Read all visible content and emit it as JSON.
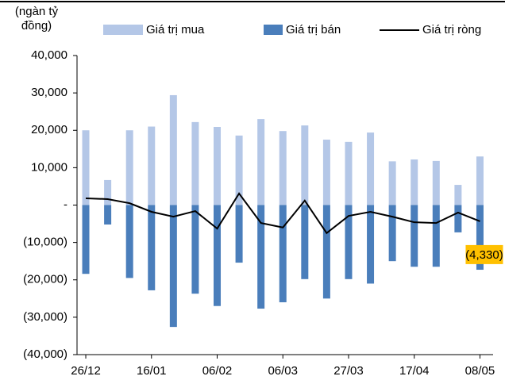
{
  "chart_data": {
    "type": "bar",
    "y_label": "(ngàn tỷ đồng)",
    "categories": [
      "26/12",
      null,
      null,
      "16/01",
      null,
      null,
      "06/02",
      null,
      null,
      "06/03",
      null,
      null,
      "27/03",
      null,
      null,
      "17/04",
      null,
      null,
      "08/05"
    ],
    "series": [
      {
        "name": "Giá trị mua",
        "type": "bar",
        "color": "#b4c7e7",
        "values": [
          20000,
          6700,
          20000,
          21000,
          29400,
          22200,
          20900,
          18600,
          23000,
          19800,
          21300,
          17500,
          16900,
          19400,
          11700,
          12200,
          11800,
          5400,
          13000
        ]
      },
      {
        "name": "Giá trị bán",
        "type": "bar",
        "color": "#4a7ebb",
        "values": [
          -18400,
          -5200,
          -19500,
          -22800,
          -32600,
          -23700,
          -27000,
          -15400,
          -27700,
          -26000,
          -19800,
          -25000,
          -19800,
          -21000,
          -15000,
          -16500,
          -16500,
          -7300,
          -17300
        ]
      },
      {
        "name": "Giá trị ròng",
        "type": "line",
        "color": "#000000",
        "values": [
          1800,
          1600,
          500,
          -1800,
          -3100,
          -1600,
          -6300,
          3100,
          -4800,
          -6000,
          1200,
          -7500,
          -2900,
          -1800,
          -3100,
          -4600,
          -4800,
          -2000,
          -4330
        ],
        "value_labels": [
          null,
          null,
          null,
          null,
          null,
          null,
          null,
          null,
          null,
          null,
          null,
          null,
          null,
          null,
          null,
          null,
          null,
          null,
          "(4,330)"
        ],
        "label_color": "#ffc000"
      }
    ],
    "ylim": [
      -40000,
      40000
    ],
    "yticks": [
      {
        "value": -40000,
        "label": "(40,000)"
      },
      {
        "value": -30000,
        "label": "(30,000)"
      },
      {
        "value": -20000,
        "label": "(20,000)"
      },
      {
        "value": -10000,
        "label": "(10,000)"
      },
      {
        "value": 0,
        "label": "-"
      },
      {
        "value": 10000,
        "label": "10,000"
      },
      {
        "value": 20000,
        "label": "20,000"
      },
      {
        "value": 30000,
        "label": "30,000"
      },
      {
        "value": 40000,
        "label": "40,000"
      }
    ],
    "grid": false
  }
}
